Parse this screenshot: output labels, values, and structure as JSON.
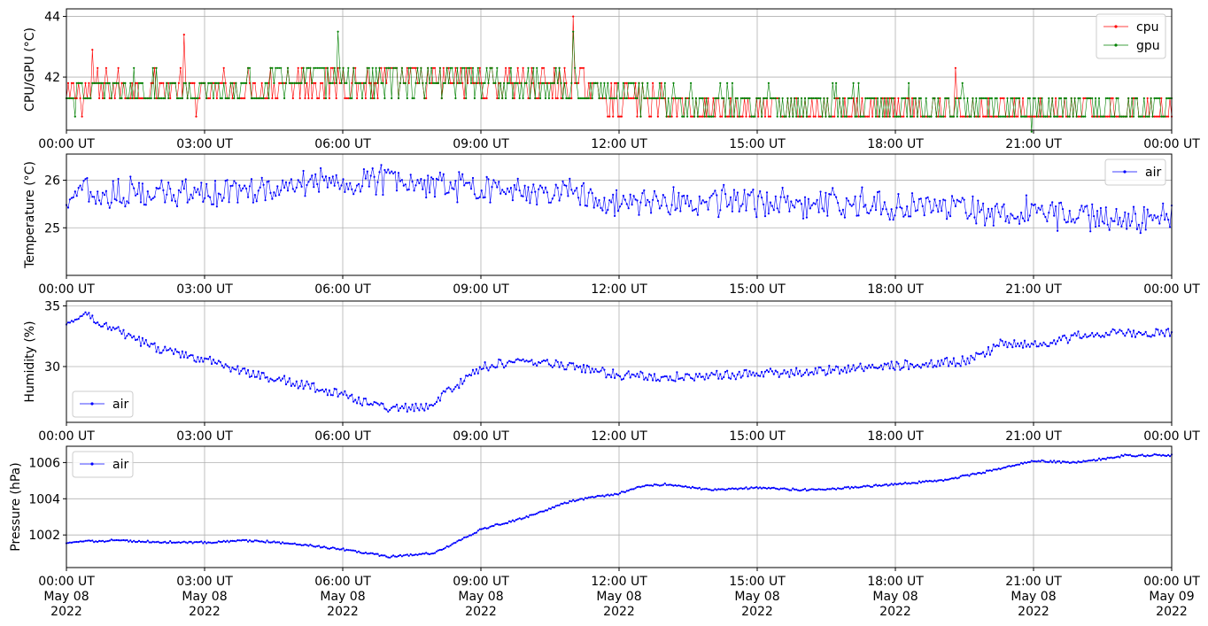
{
  "chart_data": [
    {
      "type": "line",
      "ylabel": "CPU/GPU (°C)",
      "ylim": [
        40.25,
        44.25
      ],
      "yticks": [
        42,
        44
      ],
      "grid": true,
      "legend_position": "top-right",
      "xtick_labels": [
        "00:00 UT",
        "03:00 UT",
        "06:00 UT",
        "09:00 UT",
        "12:00 UT",
        "15:00 UT",
        "18:00 UT",
        "21:00 UT",
        "00:00 UT"
      ],
      "series": [
        {
          "name": "cpu",
          "color": "#ff0000",
          "base": [
            [
              0,
              41.4
            ],
            [
              1,
              41.7
            ],
            [
              2,
              41.6
            ],
            [
              3,
              41.5
            ],
            [
              4,
              41.7
            ],
            [
              5,
              41.9
            ],
            [
              6,
              41.9
            ],
            [
              7,
              41.8
            ],
            [
              8,
              41.8
            ],
            [
              9,
              41.9
            ],
            [
              10,
              41.8
            ],
            [
              11,
              41.7
            ],
            [
              12,
              41.3
            ],
            [
              13,
              41.1
            ],
            [
              14,
              41.0
            ],
            [
              15,
              40.9
            ],
            [
              16,
              40.8
            ],
            [
              17,
              40.8
            ],
            [
              18,
              40.8
            ],
            [
              19,
              40.8
            ],
            [
              20,
              40.75
            ],
            [
              21,
              40.7
            ],
            [
              22,
              40.7
            ],
            [
              23,
              40.8
            ],
            [
              24,
              41.0
            ]
          ],
          "spread": 1.1,
          "levels": [
            40.7,
            41.3,
            41.8,
            42.3,
            42.9
          ],
          "spikes": [
            [
              2.55,
              43.4
            ],
            [
              11.0,
              44.0
            ],
            [
              0.55,
              42.9
            ],
            [
              19.3,
              42.3
            ]
          ]
        },
        {
          "name": "gpu",
          "color": "#008000",
          "base": [
            [
              0,
              41.4
            ],
            [
              1,
              41.6
            ],
            [
              2,
              41.6
            ],
            [
              3,
              41.5
            ],
            [
              4,
              41.7
            ],
            [
              5,
              41.9
            ],
            [
              6,
              41.9
            ],
            [
              7,
              41.8
            ],
            [
              8,
              41.8
            ],
            [
              9,
              41.9
            ],
            [
              10,
              41.8
            ],
            [
              11,
              41.7
            ],
            [
              12,
              41.4
            ],
            [
              13,
              41.3
            ],
            [
              14,
              41.2
            ],
            [
              15,
              41.2
            ],
            [
              16,
              41.1
            ],
            [
              17,
              41.1
            ],
            [
              18,
              41.1
            ],
            [
              19,
              41.1
            ],
            [
              20,
              41.0
            ],
            [
              21,
              40.9
            ],
            [
              22,
              40.9
            ],
            [
              23,
              40.9
            ],
            [
              24,
              41.1
            ]
          ],
          "spread": 1.0,
          "levels": [
            40.7,
            41.3,
            41.8,
            42.3,
            42.9
          ],
          "spikes": [
            [
              5.9,
              43.5
            ],
            [
              11.0,
              43.5
            ],
            [
              20.95,
              40.2
            ]
          ]
        }
      ]
    },
    {
      "type": "line",
      "ylabel": "Temperature (°C)",
      "ylim": [
        24.0,
        26.55
      ],
      "yticks": [
        25,
        26
      ],
      "grid": true,
      "legend_position": "top-right",
      "xtick_labels": [
        "00:00 UT",
        "03:00 UT",
        "06:00 UT",
        "09:00 UT",
        "12:00 UT",
        "15:00 UT",
        "18:00 UT",
        "21:00 UT",
        "00:00 UT"
      ],
      "series": [
        {
          "name": "air",
          "color": "#0000ff",
          "base": [
            [
              0,
              25.7
            ],
            [
              1,
              25.7
            ],
            [
              2,
              25.8
            ],
            [
              3,
              25.7
            ],
            [
              4,
              25.8
            ],
            [
              5,
              25.9
            ],
            [
              6,
              26.0
            ],
            [
              7,
              26.0
            ],
            [
              8,
              25.9
            ],
            [
              9,
              25.8
            ],
            [
              10,
              25.75
            ],
            [
              11,
              25.7
            ],
            [
              12,
              25.5
            ],
            [
              13,
              25.6
            ],
            [
              14,
              25.55
            ],
            [
              15,
              25.55
            ],
            [
              16,
              25.5
            ],
            [
              17,
              25.5
            ],
            [
              18,
              25.45
            ],
            [
              19,
              25.45
            ],
            [
              20,
              25.3
            ],
            [
              21,
              25.35
            ],
            [
              22,
              25.2
            ],
            [
              23,
              25.15
            ],
            [
              24,
              25.3
            ]
          ],
          "amplitude": 0.55,
          "period_hours": 0.55
        }
      ]
    },
    {
      "type": "line",
      "ylabel": "Humidity (%)",
      "ylim": [
        25.4,
        35.4
      ],
      "yticks": [
        30,
        35
      ],
      "grid": true,
      "legend_position": "bottom-left",
      "xtick_labels": [
        "00:00 UT",
        "03:00 UT",
        "06:00 UT",
        "09:00 UT",
        "12:00 UT",
        "15:00 UT",
        "18:00 UT",
        "21:00 UT",
        "00:00 UT"
      ],
      "series": [
        {
          "name": "air",
          "color": "#0000ff",
          "base": [
            [
              0,
              33.8
            ],
            [
              0.5,
              34.2
            ],
            [
              1,
              33.0
            ],
            [
              2,
              31.5
            ],
            [
              3,
              30.5
            ],
            [
              4,
              29.5
            ],
            [
              5,
              28.6
            ],
            [
              6,
              27.6
            ],
            [
              7,
              26.6
            ],
            [
              7.8,
              26.6
            ],
            [
              8.5,
              28.6
            ],
            [
              9,
              30.0
            ],
            [
              10,
              30.5
            ],
            [
              11,
              30.0
            ],
            [
              12,
              29.3
            ],
            [
              13,
              29.1
            ],
            [
              14,
              29.3
            ],
            [
              15,
              29.4
            ],
            [
              16,
              29.5
            ],
            [
              17,
              29.8
            ],
            [
              18,
              30.1
            ],
            [
              19,
              30.3
            ],
            [
              19.7,
              30.6
            ],
            [
              20.3,
              32.0
            ],
            [
              21,
              31.8
            ],
            [
              22,
              32.5
            ],
            [
              23,
              32.8
            ],
            [
              24,
              32.8
            ]
          ],
          "amplitude": 0.7,
          "period_hours": 0.6
        }
      ]
    },
    {
      "type": "line",
      "ylabel": "Pressure (hPa)",
      "ylim": [
        1000.2,
        1006.9
      ],
      "yticks": [
        1002,
        1004,
        1006
      ],
      "grid": true,
      "legend_position": "top-left",
      "xtick_labels": [
        "00:00 UT\nMay 08\n2022",
        "03:00 UT\nMay 08\n2022",
        "06:00 UT\nMay 08\n2022",
        "09:00 UT\nMay 08\n2022",
        "12:00 UT\nMay 08\n2022",
        "15:00 UT\nMay 08\n2022",
        "18:00 UT\nMay 08\n2022",
        "21:00 UT\nMay 08\n2022",
        "00:00 UT\nMay 09\n2022"
      ],
      "series": [
        {
          "name": "air",
          "color": "#0000ff",
          "base": [
            [
              0,
              1001.6
            ],
            [
              1,
              1001.7
            ],
            [
              2,
              1001.6
            ],
            [
              3,
              1001.6
            ],
            [
              4,
              1001.7
            ],
            [
              5,
              1001.5
            ],
            [
              6,
              1001.2
            ],
            [
              7,
              1000.8
            ],
            [
              8,
              1001.0
            ],
            [
              9,
              1002.3
            ],
            [
              10,
              1003.0
            ],
            [
              11,
              1003.9
            ],
            [
              12,
              1004.3
            ],
            [
              12.5,
              1004.7
            ],
            [
              13,
              1004.8
            ],
            [
              14,
              1004.5
            ],
            [
              15,
              1004.6
            ],
            [
              16,
              1004.5
            ],
            [
              17,
              1004.6
            ],
            [
              18,
              1004.8
            ],
            [
              19,
              1005.0
            ],
            [
              20,
              1005.5
            ],
            [
              21,
              1006.1
            ],
            [
              22,
              1006.0
            ],
            [
              23,
              1006.4
            ],
            [
              24,
              1006.4
            ]
          ],
          "amplitude": 0.1,
          "period_hours": 0.7
        }
      ]
    }
  ]
}
